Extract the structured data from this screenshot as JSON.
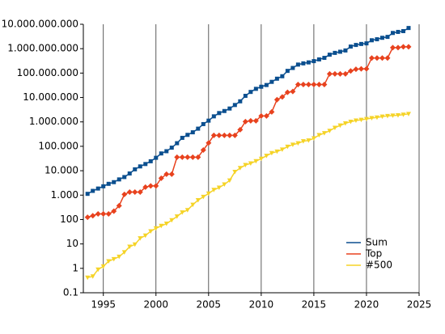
{
  "chart_data": {
    "type": "line",
    "log_y": true,
    "grid_x": true,
    "legend": "lower right",
    "x": [
      1993.5,
      1994,
      1994.5,
      1995,
      1995.5,
      1996,
      1996.5,
      1997,
      1997.5,
      1998,
      1998.5,
      1999,
      1999.5,
      2000,
      2000.5,
      2001,
      2001.5,
      2002,
      2002.5,
      2003,
      2003.5,
      2004,
      2004.5,
      2005,
      2005.5,
      2006,
      2006.5,
      2007,
      2007.5,
      2008,
      2008.5,
      2009,
      2009.5,
      2010,
      2010.5,
      2011,
      2011.5,
      2012,
      2012.5,
      2013,
      2013.5,
      2014,
      2014.5,
      2015,
      2015.5,
      2016,
      2016.5,
      2017,
      2017.5,
      2018,
      2018.5,
      2019,
      2019.5,
      2020,
      2020.5,
      2021,
      2021.5,
      2022,
      2022.5,
      2023,
      2023.5,
      2024
    ],
    "series": [
      {
        "name": "Sum",
        "color": "#0b4f8f",
        "marker": "square",
        "values": [
          1128,
          1493,
          1860,
          2300,
          2900,
          3400,
          4400,
          5500,
          7700,
          11400,
          15000,
          18800,
          24400,
          33800,
          51000,
          63000,
          88000,
          134000,
          222000,
          294000,
          375000,
          528000,
          813000,
          1127000,
          1690000,
          2300000,
          2790000,
          3530000,
          4920000,
          6970000,
          11700000,
          16900000,
          22600000,
          27600000,
          32400000,
          43700000,
          58900000,
          74200000,
          123000000,
          162000000,
          223000000,
          250000000,
          274000000,
          309000000,
          363000000,
          420000000,
          567000000,
          672000000,
          749000000,
          845000000,
          1220000000,
          1420000000,
          1560000000,
          1650000000,
          2210000000,
          2430000000,
          2790000000,
          3040000000,
          4400000000,
          4860000000,
          5240000000,
          7030000000
        ]
      },
      {
        "name": "Top",
        "color": "#e8421e",
        "marker": "diamond",
        "values": [
          124,
          143,
          170,
          170,
          170,
          220,
          368,
          1068,
          1338,
          1338,
          1338,
          2121,
          2379,
          2379,
          4938,
          7226,
          7226,
          35860,
          35860,
          35860,
          35860,
          35860,
          70720,
          136800,
          280600,
          280600,
          280600,
          280600,
          280600,
          478200,
          1026000,
          1105000,
          1105000,
          1759000,
          1759000,
          2566000,
          8162000,
          10510000,
          16320000,
          17590000,
          33860000,
          33860000,
          33860000,
          33860000,
          33860000,
          33860000,
          93010000,
          93010000,
          93010000,
          93010000,
          122300000,
          143500000,
          148600000,
          148600000,
          415500000,
          415500000,
          415500000,
          415500000,
          1102000000,
          1102000000,
          1194000000,
          1194000000
        ]
      },
      {
        "name": "#500",
        "color": "#f5d327",
        "marker": "triangle",
        "values": [
          0.42,
          0.47,
          0.9,
          1.2,
          1.96,
          2.4,
          3.0,
          4.6,
          7.7,
          9.5,
          17.1,
          22.1,
          33.1,
          43.8,
          55.1,
          67.8,
          94.3,
          134,
          196,
          245,
          403,
          624,
          851,
          1170,
          1640,
          2030,
          2740,
          4010,
          9000,
          12900,
          17100,
          20000,
          24700,
          31100,
          41000,
          52800,
          60800,
          74200,
          96600,
          117000,
          133000,
          161000,
          174000,
          212000,
          288000,
          348000,
          432000,
          576000,
          715000,
          874000,
          1020000,
          1140000,
          1220000,
          1320000,
          1430000,
          1520000,
          1650000,
          1760000,
          1820000,
          1870000,
          1980000,
          2130000
        ]
      }
    ],
    "xlim": [
      1993.1,
      2025
    ],
    "xticks": [
      1995,
      2000,
      2005,
      2010,
      2015,
      2020,
      2025
    ],
    "ylim": [
      0.1,
      10000000000
    ],
    "yticks": [
      0.1,
      1,
      10,
      100,
      {
        "value": 1000,
        "label": "1.000"
      },
      {
        "value": 10000,
        "label": "10.000"
      },
      {
        "value": 100000,
        "label": "100.000"
      },
      {
        "value": 1000000,
        "label": "1.000.000"
      },
      {
        "value": 10000000,
        "label": "10.000.000"
      },
      {
        "value": 100000000,
        "label": "100.000.000"
      },
      {
        "value": 1000000000,
        "label": "1.000.000.000"
      },
      {
        "value": 10000000000,
        "label": "10.000.000.000"
      }
    ]
  }
}
